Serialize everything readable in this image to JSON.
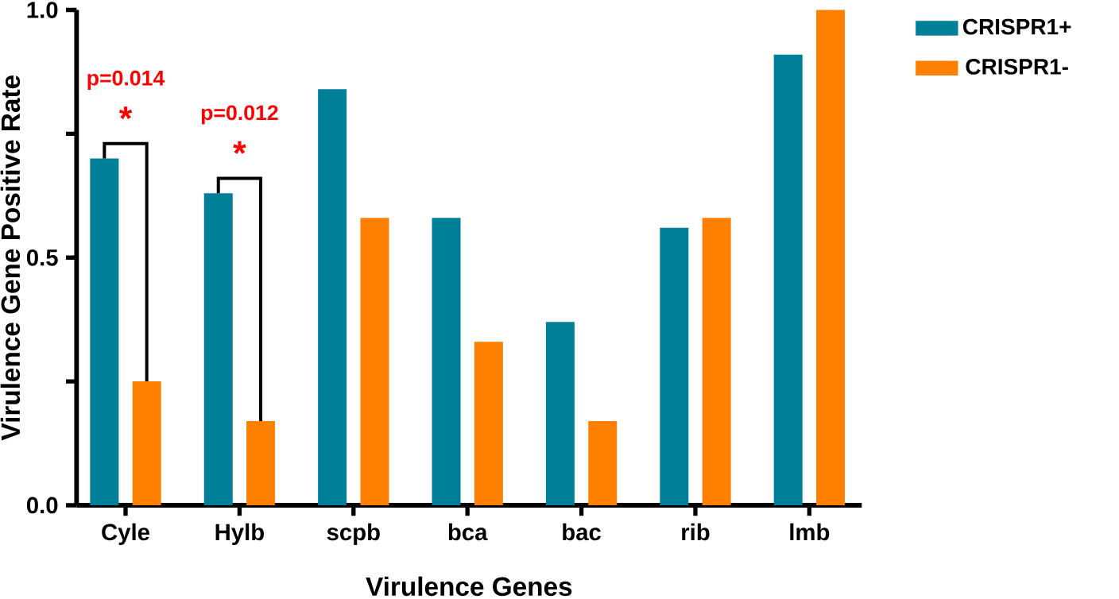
{
  "chart_data": {
    "type": "bar",
    "xlabel": "Virulence Genes",
    "ylabel": "Virulence Gene Positive Rate",
    "categories": [
      "Cyle",
      "Hylb",
      "scpb",
      "bca",
      "bac",
      "rib",
      "lmb"
    ],
    "series": [
      {
        "name": "CRISPR1+",
        "color": "#007f99",
        "values": [
          0.7,
          0.63,
          0.84,
          0.58,
          0.37,
          0.56,
          0.91
        ]
      },
      {
        "name": "CRISPR1-",
        "color": "#ff7f00",
        "values": [
          0.25,
          0.17,
          0.58,
          0.33,
          0.17,
          0.58,
          1.0
        ]
      }
    ],
    "ylim": [
      0,
      1
    ],
    "yticks": [
      {
        "value": 0,
        "label": "0.0"
      },
      {
        "value": 0.25,
        "label": null
      },
      0.5,
      {
        "value": 0.75,
        "label": null
      },
      {
        "value": 1,
        "label": "1.0"
      }
    ],
    "annotations": [
      "p=0.014",
      {
        "text": "*",
        "x": "Cyle",
        "y": 0.7
      },
      "p=0.012",
      {
        "text": "*",
        "x": "Hylb",
        "y": 0.63
      }
    ],
    "grid": false,
    "legend": "top right"
  }
}
